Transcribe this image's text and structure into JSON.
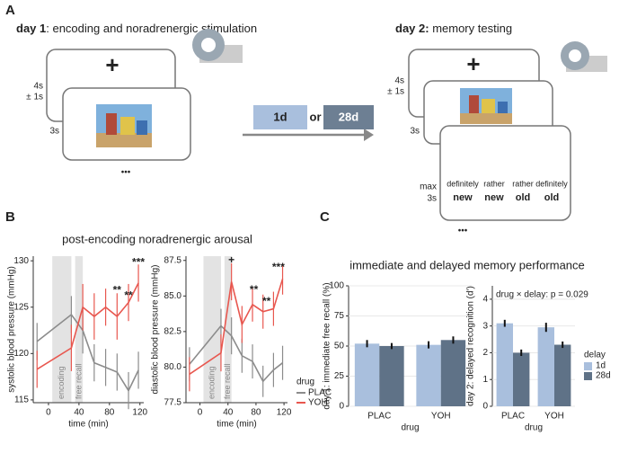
{
  "panel_a": {
    "label": "A",
    "day1_title": {
      "bold": "day 1",
      "rest": ": encoding and noradrenergic stimulation"
    },
    "fixation_time": "4s",
    "fixation_jitter": "± 1s",
    "image_time": "3s",
    "fixation": "+",
    "ellipsis": "•••",
    "delay_options": [
      "1d",
      "28d"
    ],
    "or": "or",
    "day2_title": {
      "bold": "day 2:",
      "rest": " memory testing"
    },
    "response_time": [
      "max",
      "3s"
    ],
    "responses": [
      {
        "top": "definitely",
        "bottom": "new"
      },
      {
        "top": "rather",
        "bottom": "new"
      },
      {
        "top": "rather",
        "bottom": "old"
      },
      {
        "top": "definitely",
        "bottom": "old"
      }
    ]
  },
  "panel_b": {
    "label": "B",
    "title": "post-encoding noradrenergic arousal"
  },
  "panel_c": {
    "label": "C",
    "title": "immediate and delayed memory performance"
  },
  "chart_data": [
    {
      "type": "line",
      "y_label": "systolic blood pressure (mmHg)",
      "x_label": "time (min)",
      "x": [
        -15,
        30,
        45,
        60,
        75,
        90,
        105,
        118
      ],
      "xlim": [
        -20,
        125
      ],
      "xticks": [
        0,
        40,
        80,
        120
      ],
      "ylim": [
        114.7,
        130.5
      ],
      "yticks": [
        115,
        120,
        125,
        130
      ],
      "bands": [
        {
          "label": "encoding",
          "from": 5,
          "to": 30
        },
        {
          "label": "free recall",
          "from": 35,
          "to": 45
        }
      ],
      "series": [
        {
          "color": "#8c8c8c",
          "values": [
            121.3,
            124.2,
            122.5,
            119,
            118.5,
            118,
            116,
            118.2
          ],
          "errors": [
            2,
            2,
            2.5,
            2,
            2,
            2,
            2,
            2
          ]
        },
        {
          "color": "#e8574f",
          "values": [
            118.3,
            120.6,
            125,
            124,
            125,
            124,
            125.5,
            127.6
          ],
          "errors": [
            2,
            2.5,
            2.5,
            2.5,
            2,
            2.5,
            2,
            2
          ]
        }
      ],
      "annotations": [
        {
          "text": "**",
          "x": 90,
          "y": 126.8
        },
        {
          "text": "**",
          "x": 105,
          "y": 126.2
        },
        {
          "text": "***",
          "x": 118,
          "y": 129.8
        }
      ]
    },
    {
      "type": "line",
      "y_label": "diastolic blood pressure (mmHg)",
      "x_label": "time (min)",
      "x": [
        -15,
        30,
        45,
        60,
        75,
        90,
        105,
        118
      ],
      "xlim": [
        -20,
        125
      ],
      "xticks": [
        0,
        40,
        80,
        120
      ],
      "ylim": [
        77.5,
        87.8
      ],
      "yticks": [
        77.5,
        {
          "value": 80,
          "label": "80.0"
        },
        82.5,
        {
          "value": 85,
          "label": "85.0"
        },
        87.5
      ],
      "bands": [
        {
          "label": "encoding",
          "from": 5,
          "to": 30
        },
        {
          "label": "free recall",
          "from": 35,
          "to": 45
        }
      ],
      "legend_title": "drug",
      "series": [
        {
          "name": "PLAC",
          "color": "#8c8c8c",
          "values": [
            80.2,
            82.9,
            82.2,
            80.8,
            80.4,
            79,
            79.8,
            80.3
          ],
          "errors": [
            1.2,
            1.2,
            1.3,
            1.2,
            1.2,
            1.1,
            1.2,
            1.2
          ]
        },
        {
          "name": "YOH",
          "color": "#e8574f",
          "values": [
            79.5,
            81.0,
            86.0,
            83.0,
            84.4,
            83.9,
            84.1,
            86.2
          ],
          "errors": [
            1.2,
            1.3,
            1.3,
            1.3,
            1.2,
            1.2,
            1.2,
            1.1
          ]
        }
      ],
      "annotations": [
        {
          "text": "+",
          "x": 45,
          "y": 87.5
        },
        {
          "text": "**",
          "x": 77,
          "y": 85.4
        },
        {
          "text": "**",
          "x": 95,
          "y": 84.6
        },
        {
          "text": "***",
          "x": 112,
          "y": 87.0
        }
      ]
    },
    {
      "type": "bar",
      "y_label": "day 1: immediate free recall (%)",
      "x_label": "drug",
      "categories": [
        "PLAC",
        "YOH"
      ],
      "ylim": [
        0,
        100
      ],
      "yticks": [
        0,
        25,
        50,
        75,
        100
      ],
      "series": [
        {
          "color": "#a9bfdd",
          "values": [
            52,
            51
          ],
          "errors": [
            3,
            3
          ]
        },
        {
          "color": "#5f7287",
          "values": [
            50,
            55
          ],
          "errors": [
            2.5,
            3
          ]
        }
      ]
    },
    {
      "type": "bar",
      "y_label": "day 2: delayed recognition (d')",
      "x_label": "drug",
      "categories": [
        "PLAC",
        "YOH"
      ],
      "ylim": [
        0,
        4.5
      ],
      "yticks": [
        0,
        1,
        2,
        3,
        4
      ],
      "annotation": "drug × delay: p = 0.029",
      "legend_title": "delay",
      "series": [
        {
          "name": "1d",
          "color": "#a9bfdd",
          "values": [
            3.1,
            2.95
          ],
          "errors": [
            0.13,
            0.17
          ]
        },
        {
          "name": "28d",
          "color": "#5f7287",
          "values": [
            2.0,
            2.3
          ],
          "errors": [
            0.12,
            0.12
          ]
        }
      ]
    }
  ]
}
